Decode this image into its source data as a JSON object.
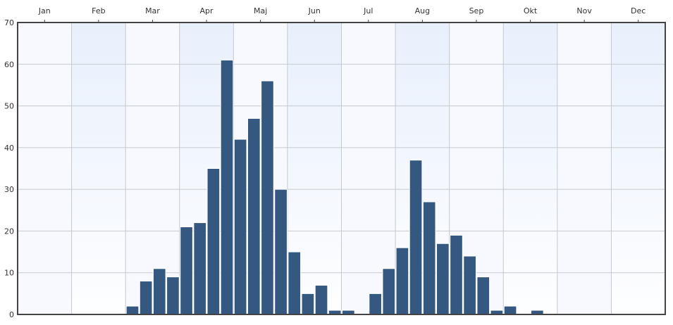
{
  "chart_data": {
    "type": "bar",
    "title": "",
    "xlabel": "",
    "ylabel": "",
    "months": [
      "Jan",
      "Feb",
      "Mar",
      "Apr",
      "Maj",
      "Jun",
      "Jul",
      "Aug",
      "Sep",
      "Okt",
      "Nov",
      "Dec"
    ],
    "y_ticks": [
      "0",
      "10",
      "20",
      "30",
      "40",
      "50",
      "60",
      "70"
    ],
    "ylim": [
      0,
      70
    ],
    "bins_per_month": 4,
    "values": [
      0,
      0,
      0,
      0,
      0,
      0,
      0,
      0,
      2,
      8,
      11,
      9,
      21,
      22,
      35,
      61,
      42,
      47,
      56,
      30,
      15,
      5,
      7,
      1,
      1,
      0,
      5,
      11,
      16,
      37,
      27,
      17,
      19,
      14,
      9,
      1,
      2,
      0,
      1,
      0,
      0,
      0,
      0,
      0,
      0,
      0,
      0,
      0
    ],
    "grid": true,
    "colors": {
      "bar": "#34587f",
      "bar_edge": "#ffffff",
      "grid": "#c5c9d0",
      "frame": "#444444",
      "band_light": "#f7f9fe",
      "band_dark": "#e6eefc"
    }
  }
}
